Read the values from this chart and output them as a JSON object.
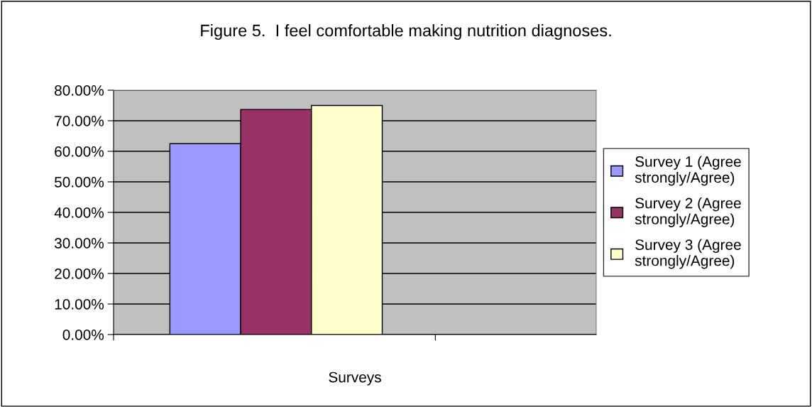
{
  "chart_data": {
    "type": "bar",
    "title": "Figure 5.  I feel comfortable making nutrition diagnoses.",
    "xlabel": "Surveys",
    "categories": [
      null
    ],
    "series": [
      {
        "name": "Survey 1 (Agree strongly/Agree)",
        "color": "#9999ff",
        "values": [
          0.625
        ]
      },
      {
        "name": "Survey 2 (Agree strongly/Agree)",
        "color": "#993366",
        "values": [
          0.737
        ]
      },
      {
        "name": "Survey 3 (Agree strongly/Agree)",
        "color": "#ffffcc",
        "values": [
          0.75
        ]
      }
    ],
    "ylim": [
      0,
      0.8
    ],
    "yticks": [
      {
        "value": 0,
        "label": "0.00%"
      },
      {
        "value": 0.1,
        "label": "10.00%"
      },
      {
        "value": 0.2,
        "label": "20.00%"
      },
      {
        "value": 0.3,
        "label": "30.00%"
      },
      {
        "value": 0.4,
        "label": "40.00%"
      },
      {
        "value": 0.5,
        "label": "50.00%"
      },
      {
        "value": 0.6,
        "label": "60.00%"
      },
      {
        "value": 0.7,
        "label": "70.00%"
      },
      {
        "value": 0.8,
        "label": "80.00%"
      }
    ],
    "grid": "y",
    "legend": "right"
  }
}
